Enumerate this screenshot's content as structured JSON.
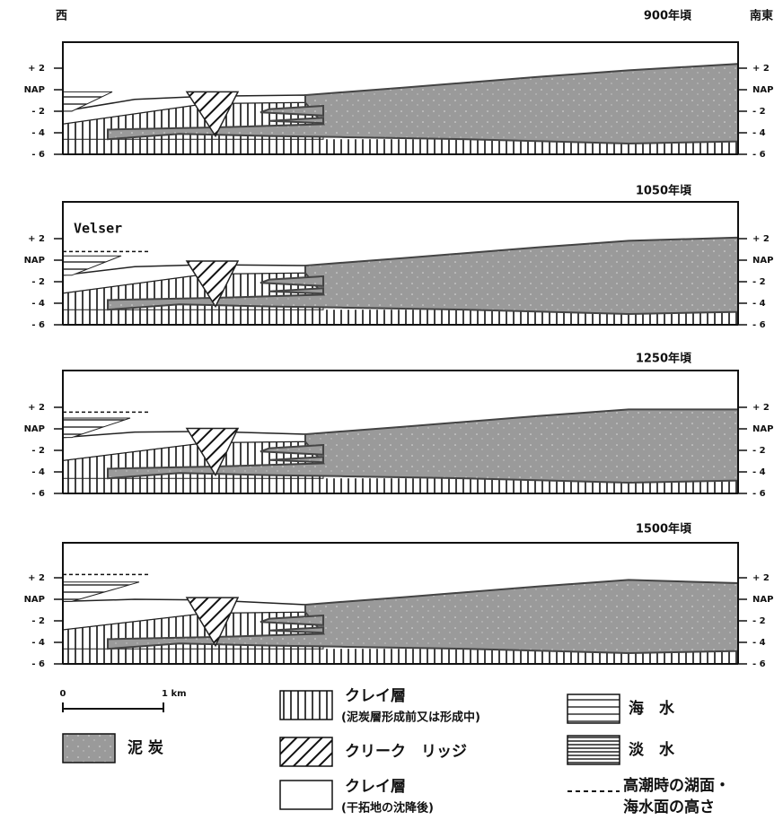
{
  "header": {
    "west": "西",
    "southeast": "南東"
  },
  "axis_labels": [
    "+ 2",
    "NAP",
    "- 2",
    "- 4",
    "- 6"
  ],
  "panels": [
    {
      "label": "900年頃"
    },
    {
      "label": "1050年頃",
      "place": "Velser"
    },
    {
      "label": "1250年頃"
    },
    {
      "label": "1500年頃"
    }
  ],
  "scale": {
    "start": "0",
    "end": "1 km"
  },
  "legend": {
    "peat": "泥 炭",
    "clay_before": {
      "title": "クレイ層",
      "note": "(泥炭層形成前又は形成中)"
    },
    "creek_ridge": "クリーク　リッジ",
    "clay_after": {
      "title": "クレイ層",
      "note": "(干拓地の沈降後)"
    },
    "sea_water": "海　水",
    "fresh_water": "淡　水",
    "high_tide": [
      "高潮時の湖面・",
      "海水面の高さ"
    ]
  }
}
